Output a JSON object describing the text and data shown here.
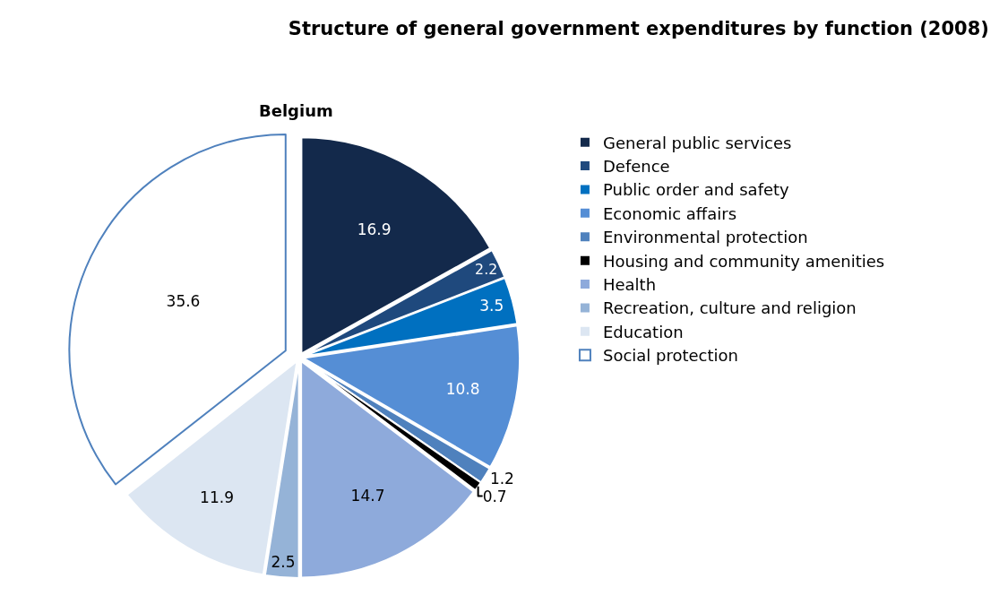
{
  "chart_data": {
    "type": "pie",
    "title": "Structure of general government expenditures by function (2008)",
    "subtitle": "Belgium",
    "categories": [
      "General public services",
      "Defence",
      "Public order and safety",
      "Economic affairs",
      "Environmental protection",
      "Housing and community amenities",
      "Health",
      "Recreation, culture and religion",
      "Education",
      "Social protection"
    ],
    "values": [
      16.9,
      2.2,
      3.5,
      10.8,
      1.2,
      0.7,
      14.7,
      2.5,
      11.9,
      35.6
    ],
    "colors": [
      "#13294b",
      "#1f497d",
      "#0070c0",
      "#558ed5",
      "#4f81bd",
      "#000000",
      "#8eaadb",
      "#95b3d7",
      "#dce6f2",
      "#ffffff"
    ],
    "data_labels": true,
    "legend": "right"
  }
}
